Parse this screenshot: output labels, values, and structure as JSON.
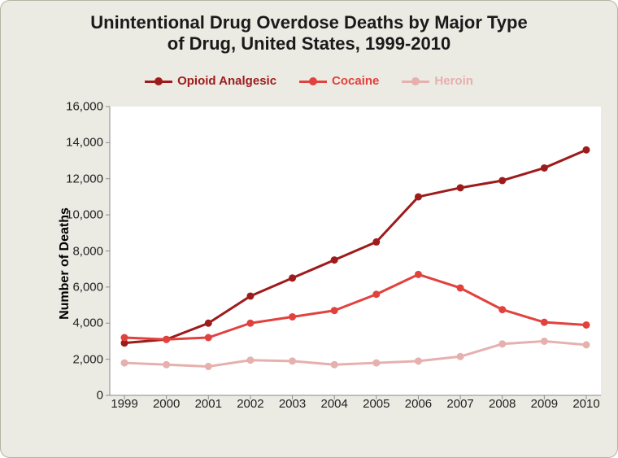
{
  "chart": {
    "type": "line",
    "title": "Unintentional Drug Overdose Deaths by Major Type\nof Drug, United States, 1999-2010",
    "title_fontsize": 22,
    "title_color": "#1a1a1a",
    "background_color": "#ebeae3",
    "panel_border_color": "#b7b3a0",
    "plot_background": "#ffffff",
    "axis_line_color": "#8a8a8a",
    "font_family": "Segoe UI, Helvetica Neue, Arial, sans-serif",
    "y_axis": {
      "label": "Number of Deaths",
      "label_fontsize": 16,
      "min": 0,
      "max": 16000,
      "tick_step": 2000,
      "tick_labels": [
        "0",
        "2,000",
        "4,000",
        "6,000",
        "8,000",
        "10,000",
        "12,000",
        "14,000",
        "16,000"
      ],
      "tick_fontsize": 15
    },
    "x_axis": {
      "categories": [
        "1999",
        "2000",
        "2001",
        "2002",
        "2003",
        "2004",
        "2005",
        "2006",
        "2007",
        "2008",
        "2009",
        "2010"
      ],
      "tick_fontsize": 15
    },
    "legend": {
      "fontsize": 15,
      "items": [
        {
          "label": "Opioid Analgesic",
          "color": "#9e1b1b"
        },
        {
          "label": "Cocaine",
          "color": "#e1423d"
        },
        {
          "label": "Heroin",
          "color": "#e6b0ae"
        }
      ]
    },
    "series": [
      {
        "name": "Opioid Analgesic",
        "color": "#9e1b1b",
        "line_width": 3,
        "marker_size": 9,
        "values": [
          2900,
          3100,
          4000,
          5500,
          6500,
          7500,
          8500,
          11000,
          11500,
          11900,
          12600,
          13600
        ]
      },
      {
        "name": "Cocaine",
        "color": "#e1423d",
        "line_width": 3,
        "marker_size": 9,
        "values": [
          3200,
          3100,
          3200,
          4000,
          4350,
          4700,
          5600,
          6700,
          5950,
          4750,
          4050,
          3900
        ]
      },
      {
        "name": "Heroin",
        "color": "#e6b0ae",
        "line_width": 3,
        "marker_size": 9,
        "values": [
          1800,
          1700,
          1600,
          1950,
          1900,
          1700,
          1800,
          1900,
          2150,
          2850,
          3000,
          2800
        ]
      }
    ]
  }
}
